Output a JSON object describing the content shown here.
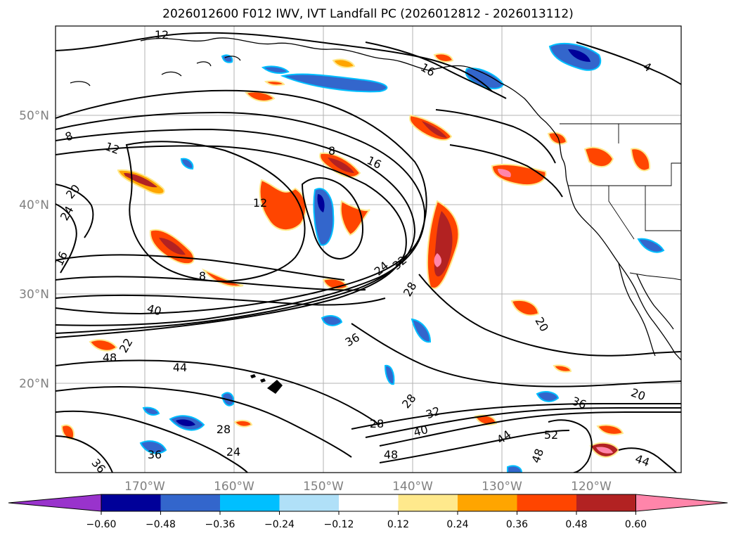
{
  "title": "2026012600 F012 IWV, IVT Landfall PC (2026012812 - 2026013112)",
  "map": {
    "projection": "cylindrical",
    "extent": {
      "lon_min": -180,
      "lon_max": -110,
      "lat_min": 10,
      "lat_max": 60
    },
    "grid": true,
    "grid_color": "#b3b3b3",
    "lat_labels": [
      "20°N",
      "30°N",
      "40°N",
      "50°N"
    ],
    "lon_labels": [
      "170°W",
      "160°W",
      "150°W",
      "140°W",
      "130°W",
      "120°W"
    ],
    "contour_labels": [
      "12",
      "16",
      "4",
      "8",
      "12",
      "16",
      "8",
      "20",
      "24",
      "16",
      "12",
      "8",
      "24",
      "32",
      "28",
      "40",
      "36",
      "20",
      "22",
      "48",
      "44",
      "28",
      "32",
      "28",
      "40",
      "20",
      "36",
      "44",
      "52",
      "48",
      "48",
      "44",
      "28",
      "36",
      "24",
      "36"
    ]
  },
  "colorbar": {
    "extend": "both",
    "ticks": [
      "−0.60",
      "−0.48",
      "−0.36",
      "−0.24",
      "−0.12",
      "0.12",
      "0.24",
      "0.36",
      "0.48",
      "0.60"
    ],
    "colors": [
      "#9933cc",
      "#000099",
      "#3366cc",
      "#00bfff",
      "#b0e0f8",
      "#ffffff",
      "#ffe98c",
      "#ffa500",
      "#ff4500",
      "#b22222",
      "#ff85aa"
    ]
  },
  "colors": {
    "contour": "#000000",
    "coast": "#000000"
  }
}
